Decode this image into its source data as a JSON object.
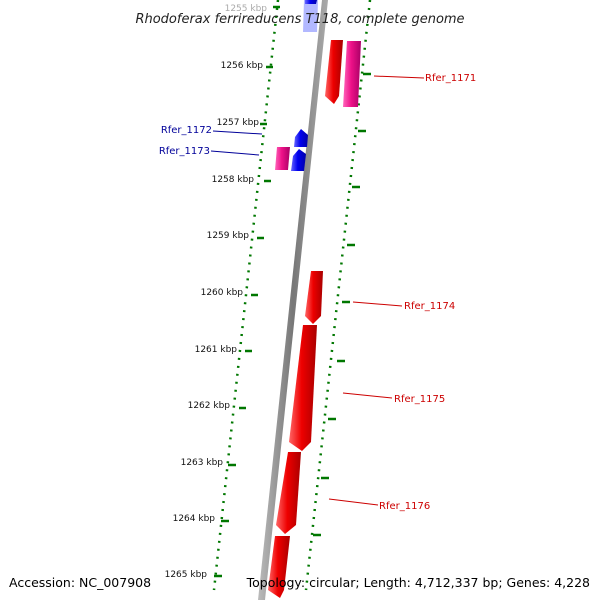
{
  "title": "Rhodoferax ferrireducens T118, complete genome",
  "footer": {
    "accession": "Accession: NC_007908",
    "topology": "Topology: circular; Length: 4,712,337 bp; Genes: 4,228"
  },
  "kbp_labels": [
    "1255 kbp",
    "1256 kbp",
    "1257 kbp",
    "1258 kbp",
    "1259 kbp",
    "1260 kbp",
    "1261 kbp",
    "1262 kbp",
    "1263 kbp",
    "1264 kbp",
    "1265 kbp"
  ],
  "gene_labels": {
    "rfer_1171": "Rfer_1171",
    "rfer_1172": "Rfer_1172",
    "rfer_1173": "Rfer_1173",
    "rfer_1174": "Rfer_1174",
    "rfer_1175": "Rfer_1175",
    "rfer_1176": "Rfer_1176"
  },
  "colors": {
    "forward_gene": "#ee0000",
    "reverse_gene": "#0000ee",
    "rna_gene": "#ee1188",
    "backbone": "#888888",
    "track_dots": "#007700",
    "label_red": "#cc0000",
    "label_blue": "#000099"
  }
}
